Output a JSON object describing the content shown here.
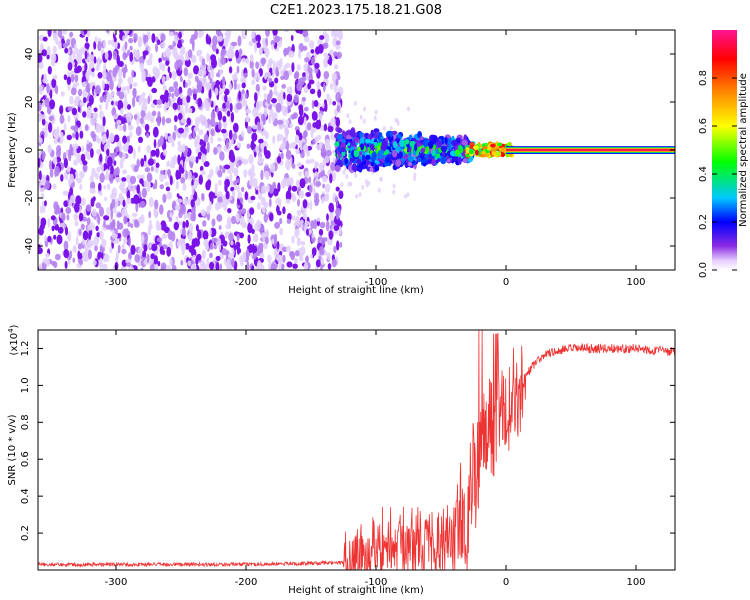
{
  "figure": {
    "title": "C2E1.2023.175.18.21.G08"
  },
  "chart_data": [
    {
      "type": "heatmap",
      "xlabel": "Height of straight line (km)",
      "ylabel": "Frequency (Hz)",
      "xlim": [
        -360,
        130
      ],
      "ylim": [
        -50,
        50
      ],
      "xticks": [
        -300,
        -200,
        -100,
        0,
        100
      ],
      "yticks": [
        -40,
        -20,
        0,
        20,
        40
      ],
      "colorbar": {
        "label": "Normalized spectral amplitude",
        "range": [
          0,
          1
        ],
        "ticks": [
          "0.0",
          "0.2",
          "0.4",
          "0.6",
          "0.8"
        ],
        "colormap": [
          "#ffffff",
          "#8a2be2",
          "#0000ff",
          "#00c8ff",
          "#00ff00",
          "#ffff00",
          "#ff8000",
          "#ff0000",
          "#ff1493"
        ]
      },
      "regions": [
        {
          "x": [
            -360,
            -127
          ],
          "freq_range": [
            -50,
            50
          ],
          "amplitude": "0.0-0.3",
          "description_color": "#8a2be2"
        },
        {
          "x": [
            -130,
            -25
          ],
          "freq_range": [
            -10,
            8
          ],
          "amplitude": "0.1-0.6"
        },
        {
          "x": [
            -30,
            5
          ],
          "freq_range": [
            -3,
            3
          ],
          "amplitude": "0.4-0.9"
        },
        {
          "x": [
            0,
            130
          ],
          "freq_range": [
            -1.5,
            1.5
          ],
          "amplitude": "0.9-1.0"
        }
      ],
      "grid": false
    },
    {
      "type": "line",
      "xlabel": "Height of straight line (km)",
      "ylabel": "SNR (10 * v/v)",
      "y_multiplier": "(x10",
      "y_multiplier_exp": "4",
      "y_multiplier_close": ")",
      "xlim": [
        -360,
        130
      ],
      "ylim": [
        0,
        1.3
      ],
      "xticks": [
        -300,
        -200,
        -100,
        0,
        100
      ],
      "yticks": [
        "0.2",
        "0.4",
        "0.6",
        "0.8",
        "1.0",
        "1.2"
      ],
      "color": "#ee3333",
      "series": [
        {
          "x": [
            -360,
            -300,
            -200,
            -120,
            -100,
            -80,
            -60,
            -40,
            -30,
            -25,
            -20,
            -15,
            -10,
            0,
            10,
            20,
            30,
            50,
            80,
            100,
            130
          ],
          "y": [
            0.03,
            0.03,
            0.03,
            0.04,
            0.13,
            0.13,
            0.15,
            0.16,
            0.3,
            0.5,
            0.6,
            0.75,
            0.8,
            0.88,
            1.0,
            1.1,
            1.17,
            1.2,
            1.2,
            1.2,
            1.18
          ]
        }
      ],
      "grid": false
    }
  ]
}
